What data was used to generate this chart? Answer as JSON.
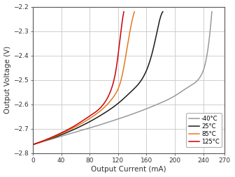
{
  "xlabel": "Output Current (mA)",
  "ylabel": "Output Voltage (V)",
  "xlim": [
    0,
    270
  ],
  "ylim": [
    -2.8,
    -2.2
  ],
  "xticks": [
    0,
    40,
    80,
    120,
    160,
    200,
    240,
    270
  ],
  "yticks": [
    -2.8,
    -2.7,
    -2.6,
    -2.5,
    -2.4,
    -2.3,
    -2.2
  ],
  "grid_color": "#c8c8c8",
  "background_color": "#ffffff",
  "curves": {
    "-40°C": {
      "color": "#999999",
      "x": [
        0,
        20,
        40,
        60,
        80,
        100,
        120,
        140,
        160,
        180,
        200,
        220,
        235,
        245,
        252
      ],
      "y": [
        -2.765,
        -2.748,
        -2.731,
        -2.714,
        -2.697,
        -2.679,
        -2.66,
        -2.64,
        -2.618,
        -2.594,
        -2.565,
        -2.527,
        -2.49,
        -2.4,
        -2.22
      ]
    },
    "25°C": {
      "color": "#1a1a1a",
      "x": [
        0,
        20,
        40,
        60,
        80,
        100,
        120,
        140,
        155,
        165,
        172,
        178,
        183
      ],
      "y": [
        -2.765,
        -2.746,
        -2.725,
        -2.7,
        -2.671,
        -2.637,
        -2.596,
        -2.543,
        -2.49,
        -2.42,
        -2.34,
        -2.26,
        -2.22
      ]
    },
    "85°C": {
      "color": "#e87820",
      "x": [
        0,
        20,
        40,
        60,
        80,
        100,
        115,
        125,
        132,
        138,
        143
      ],
      "y": [
        -2.765,
        -2.745,
        -2.72,
        -2.692,
        -2.658,
        -2.614,
        -2.563,
        -2.49,
        -2.38,
        -2.28,
        -2.22
      ]
    },
    "125°C": {
      "color": "#cc0000",
      "x": [
        0,
        20,
        40,
        60,
        80,
        100,
        110,
        118,
        124,
        128
      ],
      "y": [
        -2.765,
        -2.743,
        -2.717,
        -2.686,
        -2.648,
        -2.597,
        -2.541,
        -2.44,
        -2.3,
        -2.22
      ]
    }
  },
  "legend_order": [
    "-40°C",
    "25°C",
    "85°C",
    "125°C"
  ]
}
